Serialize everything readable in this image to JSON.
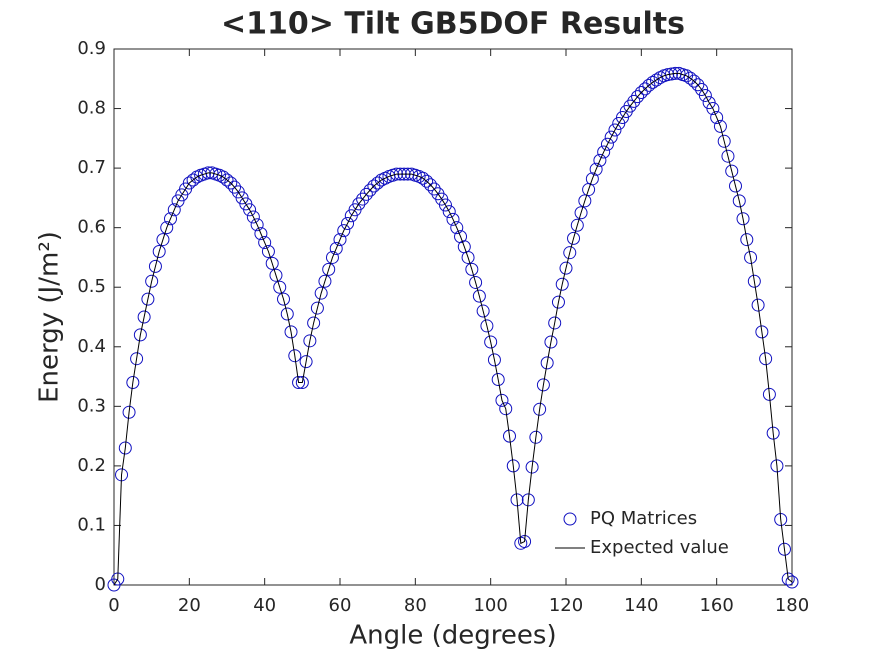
{
  "chart_data": {
    "type": "scatter-line",
    "title": "<110> Tilt GB5DOF Results",
    "xlabel": "Angle (degrees)",
    "ylabel": "Energy (J/m²)",
    "x": [
      0,
      1,
      2,
      3,
      4,
      5,
      6,
      7,
      8,
      9,
      10,
      11,
      12,
      13,
      14,
      15,
      16,
      17,
      18,
      19,
      20,
      21,
      22,
      23,
      24,
      25,
      26,
      27,
      28,
      29,
      30,
      31,
      32,
      33,
      34,
      35,
      36,
      37,
      38,
      39,
      40,
      41,
      42,
      43,
      44,
      45,
      46,
      47,
      48,
      49,
      50,
      51,
      52,
      53,
      54,
      55,
      56,
      57,
      58,
      59,
      60,
      61,
      62,
      63,
      64,
      65,
      66,
      67,
      68,
      69,
      70,
      71,
      72,
      73,
      74,
      75,
      76,
      77,
      78,
      79,
      80,
      81,
      82,
      83,
      84,
      85,
      86,
      87,
      88,
      89,
      90,
      91,
      92,
      93,
      94,
      95,
      96,
      97,
      98,
      99,
      100,
      101,
      102,
      103,
      104,
      105,
      106,
      107,
      108,
      109,
      110,
      111,
      112,
      113,
      114,
      115,
      116,
      117,
      118,
      119,
      120,
      121,
      122,
      123,
      124,
      125,
      126,
      127,
      128,
      129,
      130,
      131,
      132,
      133,
      134,
      135,
      136,
      137,
      138,
      139,
      140,
      141,
      142,
      143,
      144,
      145,
      146,
      147,
      148,
      149,
      150,
      151,
      152,
      153,
      154,
      155,
      156,
      157,
      158,
      159,
      160,
      161,
      162,
      163,
      164,
      165,
      166,
      167,
      168,
      169,
      170,
      171,
      172,
      173,
      174,
      175,
      176,
      177,
      178,
      179,
      180
    ],
    "series": [
      {
        "name": "PQ Matrices",
        "color": "#1010c0",
        "style": "markers",
        "values": [
          0,
          0.01,
          0.185,
          0.23,
          0.29,
          0.34,
          0.38,
          0.42,
          0.45,
          0.48,
          0.51,
          0.535,
          0.56,
          0.58,
          0.6,
          0.615,
          0.63,
          0.645,
          0.655,
          0.665,
          0.675,
          0.68,
          0.685,
          0.688,
          0.69,
          0.692,
          0.692,
          0.69,
          0.688,
          0.685,
          0.68,
          0.675,
          0.668,
          0.66,
          0.65,
          0.64,
          0.63,
          0.618,
          0.605,
          0.59,
          0.575,
          0.56,
          0.54,
          0.52,
          0.5,
          0.48,
          0.455,
          0.425,
          0.385,
          0.34,
          0.34,
          0.375,
          0.41,
          0.44,
          0.465,
          0.49,
          0.51,
          0.53,
          0.55,
          0.565,
          0.58,
          0.595,
          0.607,
          0.62,
          0.63,
          0.64,
          0.648,
          0.656,
          0.663,
          0.67,
          0.675,
          0.68,
          0.683,
          0.686,
          0.688,
          0.69,
          0.69,
          0.69,
          0.69,
          0.69,
          0.688,
          0.686,
          0.683,
          0.678,
          0.672,
          0.665,
          0.657,
          0.648,
          0.638,
          0.627,
          0.614,
          0.6,
          0.585,
          0.568,
          0.55,
          0.53,
          0.508,
          0.485,
          0.46,
          0.435,
          0.408,
          0.378,
          0.345,
          0.31,
          0.296,
          0.25,
          0.2,
          0.143,
          0.07,
          0.073,
          0.143,
          0.198,
          0.248,
          0.295,
          0.336,
          0.373,
          0.408,
          0.44,
          0.475,
          0.505,
          0.532,
          0.558,
          0.582,
          0.604,
          0.625,
          0.645,
          0.664,
          0.682,
          0.698,
          0.713,
          0.727,
          0.74,
          0.752,
          0.764,
          0.775,
          0.785,
          0.795,
          0.804,
          0.812,
          0.82,
          0.827,
          0.833,
          0.839,
          0.844,
          0.848,
          0.852,
          0.855,
          0.857,
          0.858,
          0.859,
          0.859,
          0.857,
          0.855,
          0.851,
          0.846,
          0.84,
          0.832,
          0.822,
          0.81,
          0.8,
          0.785,
          0.77,
          0.745,
          0.72,
          0.695,
          0.67,
          0.645,
          0.615,
          0.58,
          0.55,
          0.51,
          0.47,
          0.425,
          0.38,
          0.32,
          0.255,
          0.2,
          0.11,
          0.06,
          0.01,
          0.005
        ]
      },
      {
        "name": "Expected value",
        "color": "#000000",
        "style": "line",
        "values": [
          0,
          0.01,
          0.185,
          0.23,
          0.29,
          0.34,
          0.38,
          0.42,
          0.45,
          0.48,
          0.51,
          0.535,
          0.56,
          0.58,
          0.6,
          0.615,
          0.63,
          0.645,
          0.655,
          0.665,
          0.675,
          0.68,
          0.685,
          0.688,
          0.69,
          0.692,
          0.692,
          0.69,
          0.688,
          0.685,
          0.68,
          0.675,
          0.668,
          0.66,
          0.65,
          0.64,
          0.63,
          0.618,
          0.605,
          0.59,
          0.575,
          0.56,
          0.54,
          0.52,
          0.5,
          0.48,
          0.455,
          0.425,
          0.385,
          0.34,
          0.34,
          0.375,
          0.41,
          0.44,
          0.465,
          0.49,
          0.51,
          0.53,
          0.55,
          0.565,
          0.58,
          0.595,
          0.607,
          0.62,
          0.63,
          0.64,
          0.648,
          0.656,
          0.663,
          0.67,
          0.675,
          0.68,
          0.683,
          0.686,
          0.688,
          0.69,
          0.69,
          0.69,
          0.69,
          0.69,
          0.688,
          0.686,
          0.683,
          0.678,
          0.672,
          0.665,
          0.657,
          0.648,
          0.638,
          0.627,
          0.614,
          0.6,
          0.585,
          0.568,
          0.55,
          0.53,
          0.508,
          0.485,
          0.46,
          0.435,
          0.408,
          0.378,
          0.345,
          0.31,
          0.296,
          0.25,
          0.2,
          0.143,
          0.07,
          0.073,
          0.143,
          0.198,
          0.248,
          0.295,
          0.336,
          0.373,
          0.408,
          0.44,
          0.475,
          0.505,
          0.532,
          0.558,
          0.582,
          0.604,
          0.625,
          0.645,
          0.664,
          0.682,
          0.698,
          0.713,
          0.727,
          0.74,
          0.752,
          0.764,
          0.775,
          0.785,
          0.795,
          0.804,
          0.812,
          0.82,
          0.827,
          0.833,
          0.839,
          0.844,
          0.848,
          0.852,
          0.855,
          0.857,
          0.858,
          0.859,
          0.859,
          0.857,
          0.855,
          0.851,
          0.846,
          0.84,
          0.832,
          0.822,
          0.81,
          0.8,
          0.785,
          0.77,
          0.745,
          0.72,
          0.695,
          0.67,
          0.645,
          0.615,
          0.58,
          0.55,
          0.51,
          0.47,
          0.425,
          0.38,
          0.32,
          0.255,
          0.2,
          0.11,
          0.06,
          0.01,
          0.005
        ]
      }
    ],
    "xlim": [
      0,
      180
    ],
    "xticks": [
      0,
      20,
      40,
      60,
      80,
      100,
      120,
      140,
      160,
      180
    ],
    "ylim": [
      0,
      0.9
    ],
    "yticks": [
      0,
      0.1,
      0.2,
      0.3,
      0.4,
      0.5,
      0.6,
      0.7,
      0.8,
      0.9
    ],
    "grid": false,
    "legend": "lower right"
  }
}
